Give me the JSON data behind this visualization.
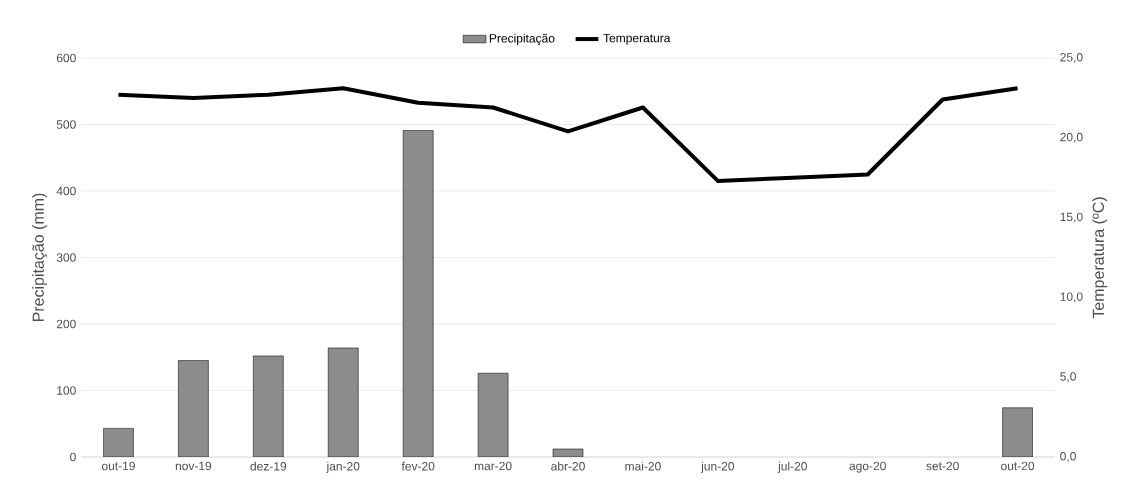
{
  "chart_data": {
    "type": "bar",
    "ylabel": "Precipitação (mm)",
    "y2label": "Temperatura (ºC)",
    "categories": [
      "out-19",
      "nov-19",
      "dez-19",
      "jan-20",
      "fev-20",
      "mar-20",
      "abr-20",
      "mai-20",
      "jun-20",
      "jul-20",
      "ago-20",
      "set-20",
      "out-20"
    ],
    "series": [
      {
        "name": "Precipitação",
        "color": "#8c8c8c",
        "values": [
          43,
          145,
          152,
          164,
          491,
          126,
          12,
          null,
          null,
          null,
          null,
          null,
          74
        ]
      },
      {
        "name": "Temperatura",
        "type": "line",
        "axis": "y2",
        "color": "#000000",
        "values": [
          22.7,
          22.5,
          22.7,
          23.1,
          22.2,
          21.9,
          20.4,
          21.9,
          17.3,
          17.5,
          17.7,
          22.4,
          23.1
        ]
      }
    ],
    "ylim": [
      0,
      600
    ],
    "yticks": [
      0,
      100,
      200,
      300,
      400,
      500,
      600
    ],
    "y2lim": [
      0,
      25
    ],
    "y2ticks": [
      {
        "value": 0,
        "label": "0,0"
      },
      {
        "value": 5,
        "label": "5,0"
      },
      {
        "value": 10,
        "label": "10,0"
      },
      {
        "value": 15,
        "label": "15,0"
      },
      {
        "value": 20,
        "label": "20,0"
      },
      {
        "value": 25,
        "label": "25,0"
      }
    ],
    "grid": "y",
    "legend": "top",
    "marker": "none",
    "line_style": "solid"
  }
}
